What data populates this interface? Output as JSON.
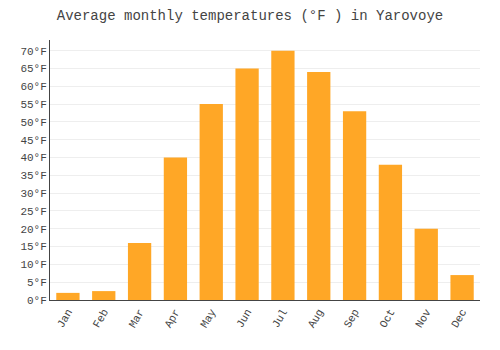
{
  "chart_data": {
    "type": "bar",
    "title": "Average monthly temperatures (°F ) in Yarovoye",
    "categories": [
      "Jan",
      "Feb",
      "Mar",
      "Apr",
      "May",
      "Jun",
      "Jul",
      "Aug",
      "Sep",
      "Oct",
      "Nov",
      "Dec"
    ],
    "values": [
      2,
      2.5,
      16,
      40,
      55,
      65,
      70,
      64,
      53,
      38,
      20,
      7
    ],
    "color": "#FFA726",
    "ylim": [
      0,
      73
    ],
    "yticks": [
      {
        "value": 0,
        "label": "0°F"
      },
      {
        "value": 5,
        "label": "5°F"
      },
      {
        "value": 10,
        "label": "10°F"
      },
      {
        "value": 15,
        "label": "15°F"
      },
      {
        "value": 20,
        "label": "20°F"
      },
      {
        "value": 25,
        "label": "25°F"
      },
      {
        "value": 30,
        "label": "30°F"
      },
      {
        "value": 35,
        "label": "35°F"
      },
      {
        "value": 40,
        "label": "40°F"
      },
      {
        "value": 45,
        "label": "45°F"
      },
      {
        "value": 50,
        "label": "50°F"
      },
      {
        "value": 55,
        "label": "55°F"
      },
      {
        "value": 60,
        "label": "60°F"
      },
      {
        "value": 65,
        "label": "65°F"
      },
      {
        "value": 70,
        "label": "70°F"
      }
    ],
    "grid": true
  }
}
